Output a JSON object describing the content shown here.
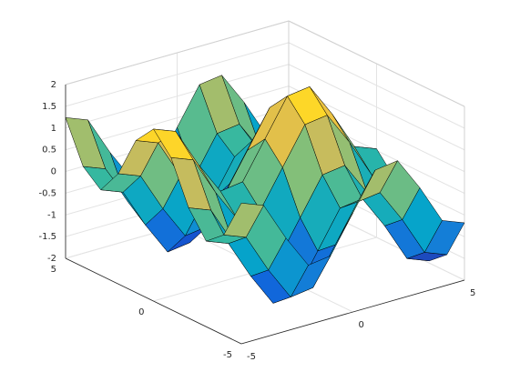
{
  "chart_data": {
    "type": "surface",
    "x": [
      -5,
      -4,
      -3,
      -2,
      -1,
      0,
      1,
      2,
      3,
      4,
      5
    ],
    "y": [
      -5,
      -4,
      -3,
      -2,
      -1,
      0,
      1,
      2,
      3,
      4,
      5
    ],
    "z": [
      [
        1.24,
        1.04,
        0.14,
        -0.63,
        -0.56,
        0.28,
        1.12,
        1.19,
        0.42,
        -0.48,
        -0.68
      ],
      [
        0.31,
        0.11,
        -0.79,
        -1.56,
        -1.49,
        -0.65,
        0.19,
        0.26,
        -0.51,
        -1.41,
        -1.61
      ],
      [
        -0.03,
        -0.23,
        -1.13,
        -1.9,
        -1.83,
        -0.99,
        -0.15,
        -0.08,
        -0.85,
        -1.75,
        -1.95
      ],
      [
        0.54,
        0.34,
        -0.56,
        -1.33,
        -1.26,
        -0.42,
        0.42,
        0.49,
        -0.28,
        -1.18,
        -1.38
      ],
      [
        1.5,
        1.3,
        0.4,
        -0.37,
        -0.3,
        0.54,
        1.38,
        1.45,
        0.68,
        -0.22,
        -0.42
      ],
      [
        1.96,
        1.76,
        0.86,
        0.09,
        0.16,
        1,
        1.84,
        1.91,
        1.14,
        0.24,
        0.04
      ],
      [
        1.5,
        1.3,
        0.4,
        -0.37,
        -0.3,
        0.54,
        1.38,
        1.45,
        0.68,
        -0.22,
        -0.42
      ],
      [
        0.54,
        0.34,
        -0.56,
        -1.33,
        -1.26,
        -0.42,
        0.42,
        0.49,
        -0.28,
        -1.18,
        -1.38
      ],
      [
        -0.03,
        -0.23,
        -1.13,
        -1.9,
        -1.83,
        -0.99,
        -0.15,
        -0.08,
        -0.85,
        -1.75,
        -1.95
      ],
      [
        0.31,
        0.11,
        -0.79,
        -1.56,
        -1.49,
        -0.65,
        0.19,
        0.26,
        -0.51,
        -1.41,
        -1.61
      ],
      [
        1.24,
        1.04,
        0.14,
        -0.63,
        -0.56,
        0.28,
        1.12,
        1.19,
        0.42,
        -0.48,
        -0.68
      ]
    ],
    "xlim": [
      -5,
      5
    ],
    "ylim": [
      -5,
      5
    ],
    "zlim": [
      -2,
      2
    ],
    "xticks": [
      -5,
      0,
      5
    ],
    "yticks": [
      -5,
      0,
      5
    ],
    "zticks": [
      -2,
      -1.5,
      -1,
      -0.5,
      0,
      0.5,
      1,
      1.5,
      2
    ],
    "grid": true,
    "edgecolor": "#000000",
    "colormap": [
      "#352a87",
      "#0f5cdd",
      "#1481d6",
      "#06a4ca",
      "#2eb7a4",
      "#87bf77",
      "#d1bb59",
      "#fec832",
      "#f9fb0e"
    ]
  }
}
